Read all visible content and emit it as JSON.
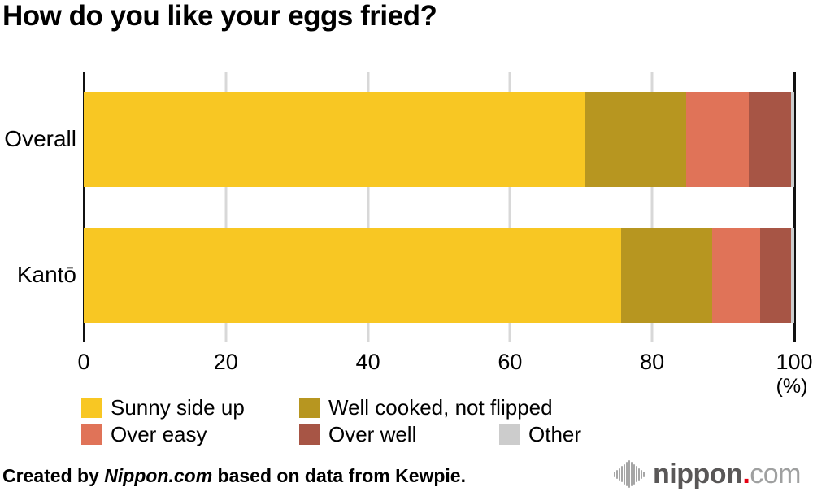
{
  "title": "How do you like your eggs fried?",
  "chart_data": {
    "type": "bar",
    "orientation": "horizontal",
    "stacked": true,
    "categories": [
      "Overall",
      "Kantō"
    ],
    "series": [
      {
        "name": "Sunny side up",
        "color": "#f8c723",
        "values": [
          70.6,
          75.6
        ]
      },
      {
        "name": "Well cooked, not flipped",
        "color": "#b79620",
        "values": [
          14.2,
          12.8
        ]
      },
      {
        "name": "Over easy",
        "color": "#e07358",
        "values": [
          8.8,
          6.8
        ]
      },
      {
        "name": "Over well",
        "color": "#a75545",
        "values": [
          6.0,
          4.4
        ]
      },
      {
        "name": "Other",
        "color": "#cccccc",
        "values": [
          0.4,
          0.4
        ]
      }
    ],
    "xlim": [
      0,
      100
    ],
    "x_ticks": [
      "0",
      "20",
      "40",
      "60",
      "80",
      "100"
    ],
    "x_unit": "(%)",
    "grid": true,
    "legend_position": "bottom"
  },
  "footer": {
    "credit_prefix": "Created by ",
    "credit_source": "Nippon.com",
    "credit_suffix": " based on data from Kewpie.",
    "logo": {
      "icon": "sound-wave-icon",
      "name": "nippon",
      "dot": ".",
      "tld": "com",
      "dot_color": "#e60012"
    }
  }
}
